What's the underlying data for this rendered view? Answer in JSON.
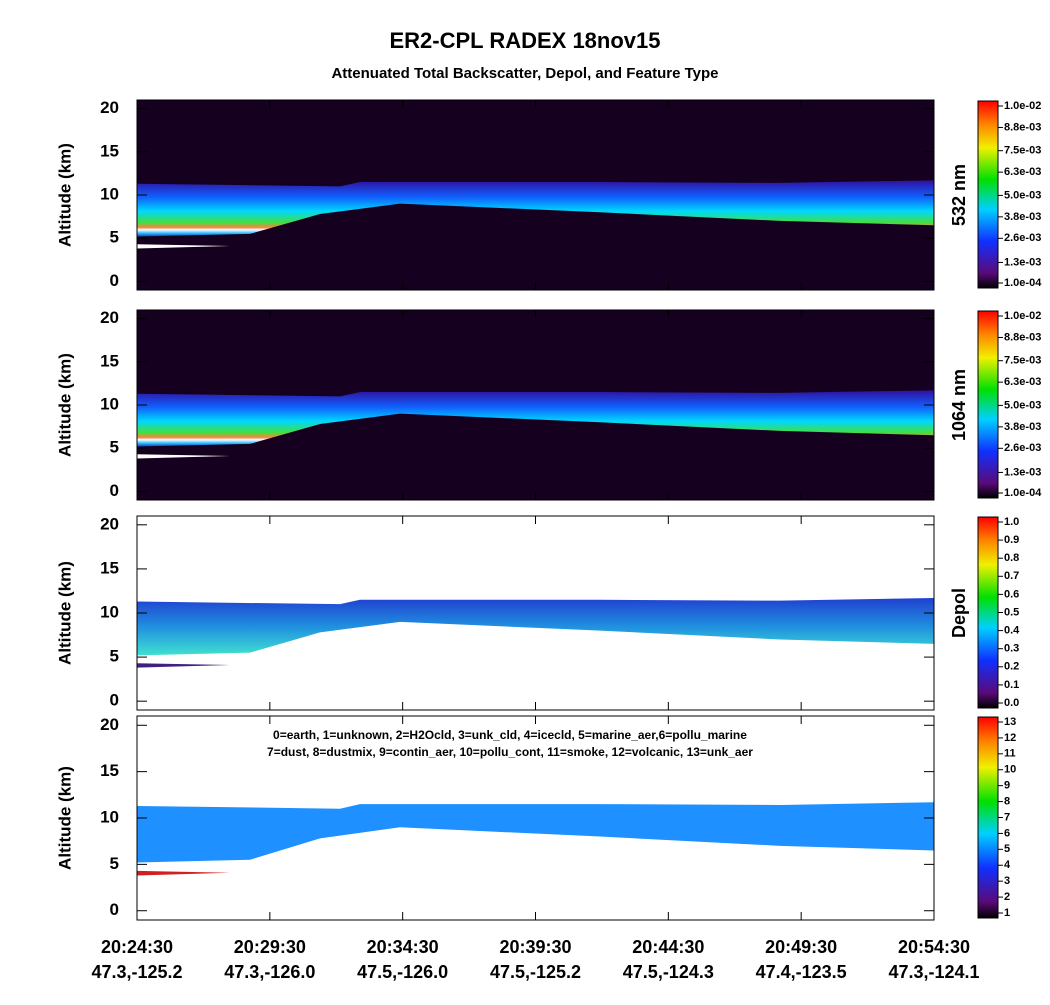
{
  "title": "ER2-CPL RADEX 18nov15",
  "subtitle": "Attenuated Total Backscatter, Depol, and Feature Type",
  "xticks": [
    {
      "time": "20:24:30",
      "location": "47.3,-125.2"
    },
    {
      "time": "20:29:30",
      "location": "47.3,-126.0"
    },
    {
      "time": "20:34:30",
      "location": "47.5,-126.0"
    },
    {
      "time": "20:39:30",
      "location": "47.5,-125.2"
    },
    {
      "time": "20:44:30",
      "location": "47.5,-124.3"
    },
    {
      "time": "20:49:30",
      "location": "47.4,-123.5"
    },
    {
      "time": "20:54:30",
      "location": "47.3,-124.1"
    }
  ],
  "chart_data": [
    {
      "type": "heatmap",
      "ylabel": "Altitude (km)",
      "ylim": [
        -1,
        21
      ],
      "yticks": [
        0,
        5,
        10,
        15,
        20
      ],
      "colorbar": {
        "label": "532 nm",
        "ticks": [
          {
            "value": 0.0001,
            "label": "1.0e-04"
          },
          {
            "value": 0.00125,
            "label": "1.3e-03"
          },
          {
            "value": 0.0026,
            "label": "2.6e-03"
          },
          {
            "value": 0.0038,
            "label": "3.8e-03"
          },
          {
            "value": 0.005,
            "label": "5.0e-03"
          },
          {
            "value": 0.0063,
            "label": "6.3e-03"
          },
          {
            "value": 0.0075,
            "label": "7.5e-03"
          },
          {
            "value": 0.0088,
            "label": "8.8e-03"
          },
          {
            "value": 0.01,
            "label": "1.0e-02"
          }
        ]
      }
    },
    {
      "type": "heatmap",
      "ylabel": "Altitude (km)",
      "ylim": [
        -1,
        21
      ],
      "yticks": [
        0,
        5,
        10,
        15,
        20
      ],
      "colorbar": {
        "label": "1064 nm",
        "ticks": [
          {
            "value": 0.0001,
            "label": "1.0e-04"
          },
          {
            "value": 0.00125,
            "label": "1.3e-03"
          },
          {
            "value": 0.0026,
            "label": "2.6e-03"
          },
          {
            "value": 0.0038,
            "label": "3.8e-03"
          },
          {
            "value": 0.005,
            "label": "5.0e-03"
          },
          {
            "value": 0.0063,
            "label": "6.3e-03"
          },
          {
            "value": 0.0075,
            "label": "7.5e-03"
          },
          {
            "value": 0.0088,
            "label": "8.8e-03"
          },
          {
            "value": 0.01,
            "label": "1.0e-02"
          }
        ]
      }
    },
    {
      "type": "heatmap",
      "ylabel": "Altitude (km)",
      "ylim": [
        -1,
        21
      ],
      "yticks": [
        0,
        5,
        10,
        15,
        20
      ],
      "colorbar": {
        "label": "Depol",
        "ticks": [
          {
            "value": 0,
            "label": "0.0"
          },
          0.1,
          0.2,
          0.3,
          0.4,
          0.5,
          0.6,
          0.7,
          0.8,
          0.9,
          {
            "value": 1,
            "label": "1.0"
          }
        ]
      }
    },
    {
      "type": "heatmap",
      "ylabel": "Altitude (km)",
      "ylim": [
        -1,
        21
      ],
      "yticks": [
        0,
        5,
        10,
        15,
        20
      ],
      "annotation": [
        "0=earth, 1=unknown, 2=H2Ocld, 3=unk_cld, 4=icecld, 5=marine_aer,6=pollu_marine",
        "7=dust, 8=dustmix, 9=contin_aer, 10=pollu_cont, 11=smoke, 12=volcanic, 13=unk_aer"
      ],
      "colorbar": {
        "ticks": [
          1,
          2,
          3,
          4,
          5,
          6,
          7,
          8,
          9,
          10,
          11,
          12,
          13
        ]
      }
    }
  ]
}
